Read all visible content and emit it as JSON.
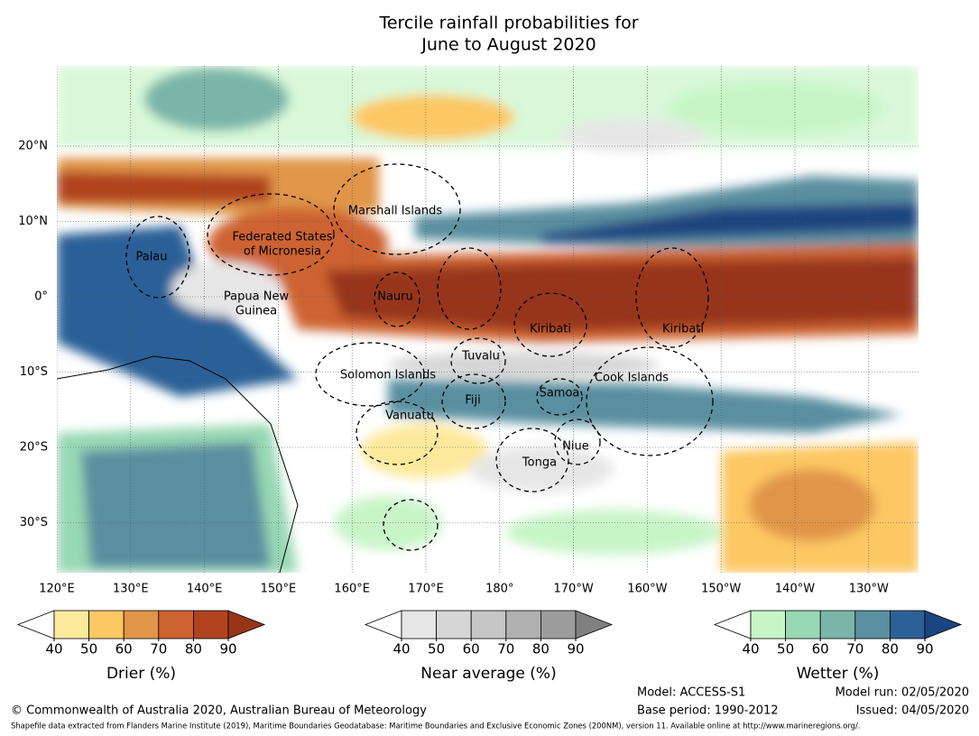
{
  "title": [
    "Tercile rainfall probabilities for",
    "June to August 2020"
  ],
  "map": {
    "lat_ticks": [
      {
        "value": 20,
        "label": "20°N"
      },
      {
        "value": 10,
        "label": "10°N"
      },
      {
        "value": 0,
        "label": "0°"
      },
      {
        "value": -10,
        "label": "10°S"
      },
      {
        "value": -20,
        "label": "20°S"
      },
      {
        "value": -30,
        "label": "30°S"
      }
    ],
    "lon_ticks": [
      {
        "value": 120,
        "label": "120°E"
      },
      {
        "value": 130,
        "label": "130°E"
      },
      {
        "value": 140,
        "label": "140°E"
      },
      {
        "value": 150,
        "label": "150°E"
      },
      {
        "value": 160,
        "label": "160°E"
      },
      {
        "value": 170,
        "label": "170°E"
      },
      {
        "value": 180,
        "label": "180°"
      },
      {
        "value": 190,
        "label": "170°W"
      },
      {
        "value": 200,
        "label": "160°W"
      },
      {
        "value": 210,
        "label": "150°W"
      },
      {
        "value": 220,
        "label": "140°W"
      },
      {
        "value": 230,
        "label": "130°W"
      }
    ],
    "regions": [
      "Marshall Islands",
      "Federated States",
      "of Micronesia",
      "Palau",
      "Papua New",
      "Guinea",
      "Nauru",
      "Kiribati",
      "Kiribati",
      "Tuvalu",
      "Solomon Islands",
      "Cook Islands",
      "Fiji",
      "Samoa",
      "Vanuatu",
      "Niue",
      "Tonga"
    ]
  },
  "colorbars": [
    {
      "label": "Drier (%)",
      "ticks": [
        40,
        50,
        60,
        70,
        80,
        90
      ],
      "colors": [
        "#fde99c",
        "#fdc763",
        "#e0954a",
        "#cd6330",
        "#b0431f"
      ],
      "extend_color": "#97341a"
    },
    {
      "label": "Near average (%)",
      "ticks": [
        40,
        50,
        60,
        70,
        80,
        90
      ],
      "colors": [
        "#e6e6e6",
        "#d6d6d6",
        "#c6c6c6",
        "#b0b0b0",
        "#9c9c9c"
      ],
      "extend_color": "#808080"
    },
    {
      "label": "Wetter (%)",
      "ticks": [
        40,
        50,
        60,
        70,
        80,
        90
      ],
      "colors": [
        "#c8f5c8",
        "#98d8b4",
        "#7ab5a8",
        "#5a8fa0",
        "#2c6197"
      ],
      "extend_color": "#1a4580"
    }
  ],
  "footer": {
    "copyright": "© Commonwealth of Australia 2020, Australian Bureau of Meteorology",
    "model": "Model: ACCESS-S1",
    "base_period": "Base period: 1990-2012",
    "model_run": "Model run: 02/05/2020",
    "issued": "Issued: 04/05/2020",
    "shapefile": "Shapefile data extracted from Flanders Marine Institute (2019), Maritime Boundaries Geodatabase: Maritime Boundaries and Exclusive Economic Zones (200NM), version 11. Available online at http://www.marineregions.org/."
  }
}
